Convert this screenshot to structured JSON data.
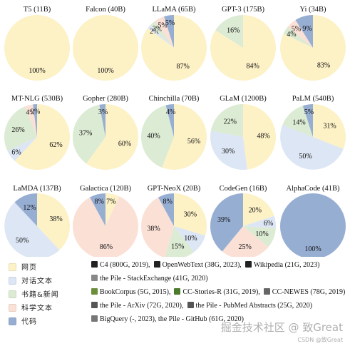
{
  "colors": {
    "web": "#fdf1c6",
    "dialogue": "#dce6f4",
    "books_news": "#dcebd3",
    "scientific": "#fbe0d6",
    "code": "#97aed3"
  },
  "chart_data": {
    "type": "pie",
    "category_order": [
      "web",
      "dialogue",
      "books_news",
      "scientific",
      "code"
    ],
    "charts": [
      {
        "title": "T5 (11B)",
        "slices": [
          {
            "cat": "web",
            "value": 100,
            "label": "100%"
          }
        ]
      },
      {
        "title": "Falcon (40B)",
        "slices": [
          {
            "cat": "web",
            "value": 100,
            "label": "100%"
          }
        ]
      },
      {
        "title": "LLaMA (65B)",
        "slices": [
          {
            "cat": "web",
            "value": 87,
            "label": "87%"
          },
          {
            "cat": "dialogue",
            "value": 2,
            "label": "2%"
          },
          {
            "cat": "books_news",
            "value": 3,
            "label": "3%"
          },
          {
            "cat": "scientific",
            "value": 5,
            "label": "5%"
          },
          {
            "cat": "code",
            "value": 5,
            "label": "5%"
          }
        ]
      },
      {
        "title": "GPT-3 (175B)",
        "slices": [
          {
            "cat": "web",
            "value": 84,
            "label": "84%"
          },
          {
            "cat": "books_news",
            "value": 16,
            "label": "16%"
          }
        ]
      },
      {
        "title": "Yi (34B)",
        "slices": [
          {
            "cat": "web",
            "value": 83,
            "label": "83%"
          },
          {
            "cat": "books_news",
            "value": 4,
            "label": "4%"
          },
          {
            "cat": "scientific",
            "value": 5,
            "label": "5%"
          },
          {
            "cat": "code",
            "value": 9,
            "label": "9%"
          }
        ]
      },
      {
        "title": "MT-NLG (530B)",
        "slices": [
          {
            "cat": "web",
            "value": 62,
            "label": "62%"
          },
          {
            "cat": "dialogue",
            "value": 6,
            "label": "6%"
          },
          {
            "cat": "books_news",
            "value": 26,
            "label": "26%"
          },
          {
            "cat": "scientific",
            "value": 4,
            "label": "4%"
          },
          {
            "cat": "code",
            "value": 2,
            "label": "2%"
          }
        ]
      },
      {
        "title": "Gopher (280B)",
        "slices": [
          {
            "cat": "web",
            "value": 60,
            "label": "60%"
          },
          {
            "cat": "books_news",
            "value": 37,
            "label": "37%"
          },
          {
            "cat": "code",
            "value": 3,
            "label": "3%"
          }
        ]
      },
      {
        "title": "Chinchilla (70B)",
        "slices": [
          {
            "cat": "web",
            "value": 56,
            "label": "56%"
          },
          {
            "cat": "books_news",
            "value": 40,
            "label": "40%"
          },
          {
            "cat": "code",
            "value": 4,
            "label": "4%"
          }
        ]
      },
      {
        "title": "GLaM (1200B)",
        "slices": [
          {
            "cat": "web",
            "value": 48,
            "label": "48%"
          },
          {
            "cat": "dialogue",
            "value": 30,
            "label": "30%"
          },
          {
            "cat": "books_news",
            "value": 22,
            "label": "22%"
          }
        ]
      },
      {
        "title": "PaLM (540B)",
        "slices": [
          {
            "cat": "web",
            "value": 31,
            "label": "31%"
          },
          {
            "cat": "dialogue",
            "value": 50,
            "label": "50%"
          },
          {
            "cat": "books_news",
            "value": 14,
            "label": "14%"
          },
          {
            "cat": "code",
            "value": 5,
            "label": "5%"
          }
        ]
      },
      {
        "title": "LaMDA (137B)",
        "slices": [
          {
            "cat": "web",
            "value": 38,
            "label": "38%"
          },
          {
            "cat": "dialogue",
            "value": 50,
            "label": "50%"
          },
          {
            "cat": "code",
            "value": 12,
            "label": "12%"
          }
        ]
      },
      {
        "title": "Galactica (120B)",
        "slices": [
          {
            "cat": "web",
            "value": 7,
            "label": "7%"
          },
          {
            "cat": "scientific",
            "value": 86,
            "label": "86%"
          },
          {
            "cat": "code",
            "value": 8,
            "label": "8%"
          }
        ]
      },
      {
        "title": "GPT-NeoX (20B)",
        "slices": [
          {
            "cat": "web",
            "value": 30,
            "label": "30%"
          },
          {
            "cat": "dialogue",
            "value": 10,
            "label": "10%"
          },
          {
            "cat": "books_news",
            "value": 15,
            "label": "15%"
          },
          {
            "cat": "scientific",
            "value": 38,
            "label": "38%"
          },
          {
            "cat": "code",
            "value": 8,
            "label": "8%"
          }
        ]
      },
      {
        "title": "CodeGen (16B)",
        "slices": [
          {
            "cat": "web",
            "value": 20,
            "label": "20%"
          },
          {
            "cat": "dialogue",
            "value": 6,
            "label": "6%"
          },
          {
            "cat": "books_news",
            "value": 10,
            "label": "10%"
          },
          {
            "cat": "scientific",
            "value": 25,
            "label": "25%"
          },
          {
            "cat": "code",
            "value": 39,
            "label": "39%"
          }
        ]
      },
      {
        "title": "AlphaCode (41B)",
        "slices": [
          {
            "cat": "code",
            "value": 100,
            "label": "100%"
          }
        ]
      }
    ]
  },
  "legend": {
    "rows": [
      {
        "cat": "web",
        "label": "网页",
        "sources": [
          {
            "icon": "#222222",
            "text": "C4 (800G, 2019),"
          },
          {
            "icon": "#222222",
            "text": "OpenWebText (38G, 2023),"
          },
          {
            "icon": "#222222",
            "text": "Wikipedia (21G, 2023)"
          }
        ]
      },
      {
        "cat": "dialogue",
        "label": "对话文本",
        "sources": [
          {
            "icon": "#888888",
            "text": "the Pile - StackExchange (41G, 2020)"
          }
        ]
      },
      {
        "cat": "books_news",
        "label": "书籍&新闻",
        "sources": [
          {
            "icon": "#6b8e3a",
            "text": "BookCorpus (5G, 2015),"
          },
          {
            "icon": "#4a7a2a",
            "text": "CC-Stories-R (31G, 2019),"
          },
          {
            "icon": "#666666",
            "text": "CC-NEWES (78G, 2019)"
          }
        ]
      },
      {
        "cat": "scientific",
        "label": "科学文本",
        "sources": [
          {
            "icon": "#555555",
            "text": "the Pile - ArXiv (72G, 2020),"
          },
          {
            "icon": "#555555",
            "text": "the Pile - PubMed Abstracts (25G, 2020)"
          }
        ]
      },
      {
        "cat": "code",
        "label": "代码",
        "sources": [
          {
            "icon": "#777777",
            "text": "BigQuery (-, 2023), the Pile - GitHub (61G, 2020)"
          }
        ]
      }
    ]
  },
  "watermark": {
    "text": "掘金技术社区 @ 致Great",
    "sub": "CSDN @致Great"
  }
}
